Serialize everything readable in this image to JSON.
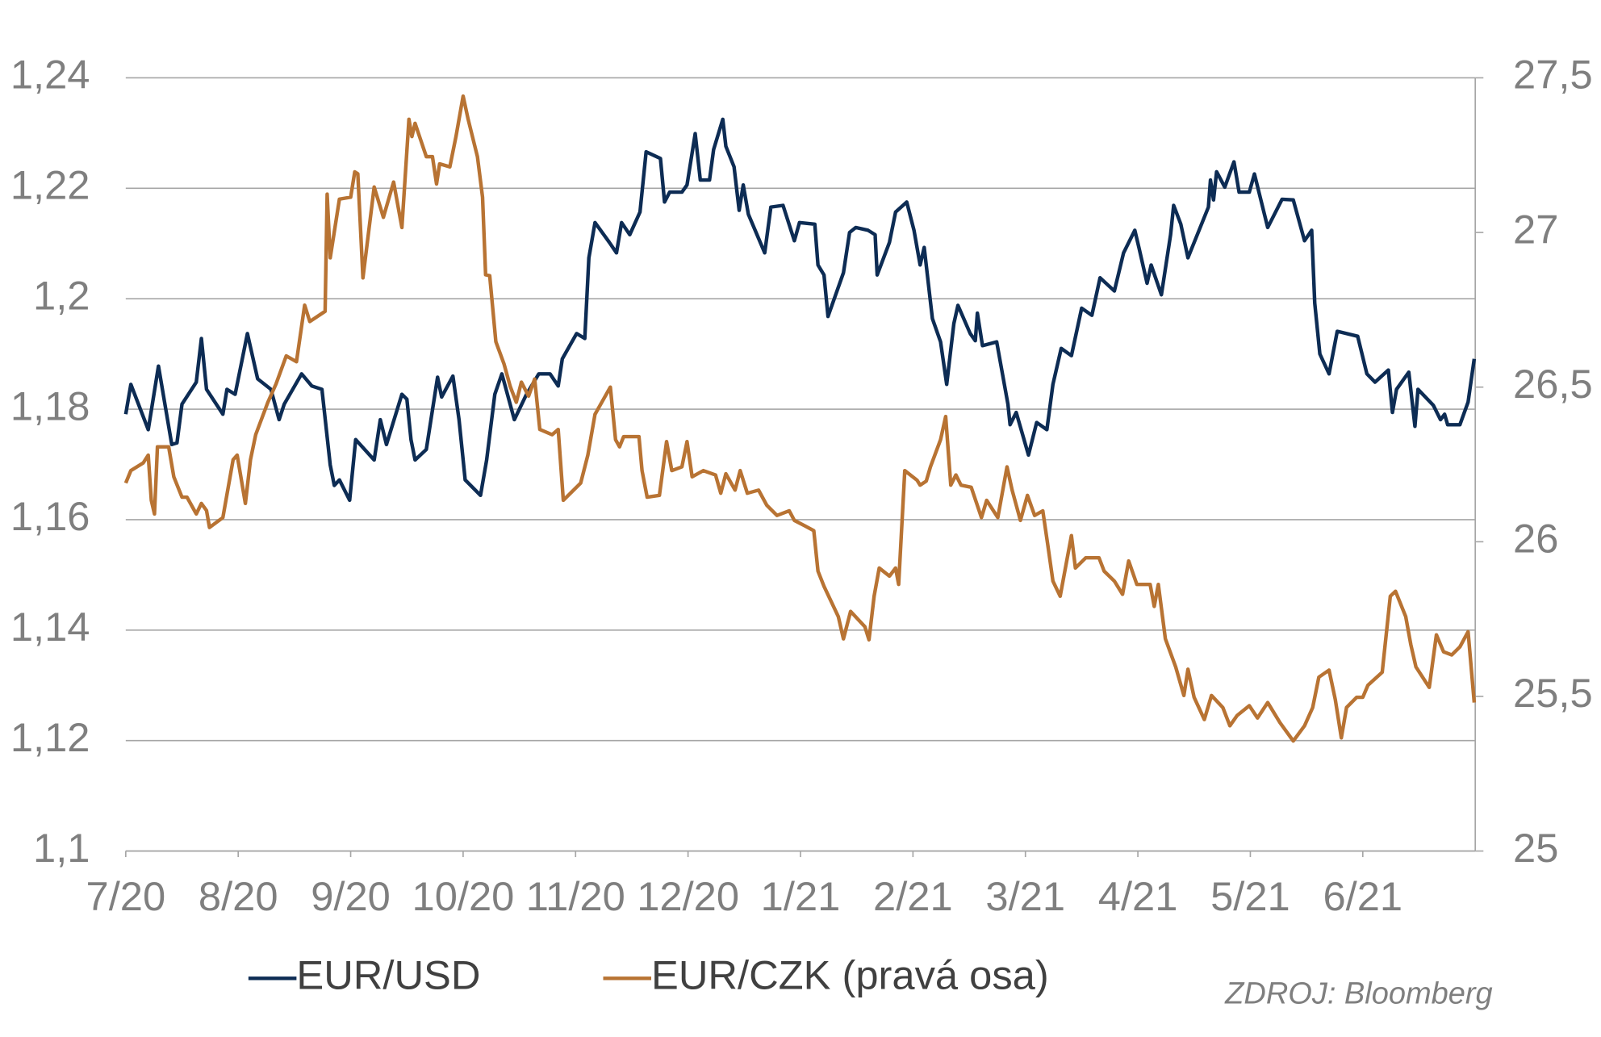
{
  "chart_data": {
    "type": "line",
    "source": "ZDROJ: Bloomberg",
    "xlim": [
      0,
      12
    ],
    "xticks": [
      {
        "value": 0,
        "label": "7/20"
      },
      {
        "value": 1,
        "label": "8/20"
      },
      {
        "value": 2,
        "label": "9/20"
      },
      {
        "value": 3,
        "label": "10/20"
      },
      {
        "value": 4,
        "label": "11/20"
      },
      {
        "value": 5,
        "label": "12/20"
      },
      {
        "value": 6,
        "label": "1/21"
      },
      {
        "value": 7,
        "label": "2/21"
      },
      {
        "value": 8,
        "label": "3/21"
      },
      {
        "value": 9,
        "label": "4/21"
      },
      {
        "value": 10,
        "label": "5/21"
      },
      {
        "value": 11,
        "label": "6/21"
      }
    ],
    "ylim": [
      1.1,
      1.24
    ],
    "yticks": [
      {
        "value": 1.1,
        "label": "1,1"
      },
      {
        "value": 1.12,
        "label": "1,12"
      },
      {
        "value": 1.14,
        "label": "1,14"
      },
      {
        "value": 1.16,
        "label": "1,16"
      },
      {
        "value": 1.18,
        "label": "1,18"
      },
      {
        "value": 1.2,
        "label": "1,2"
      },
      {
        "value": 1.22,
        "label": "1,22"
      },
      {
        "value": 1.24,
        "label": "1,24"
      }
    ],
    "y2lim": [
      25,
      27.5
    ],
    "y2ticks": [
      25,
      {
        "value": 25.5,
        "label": "25,5"
      },
      26,
      {
        "value": 26.5,
        "label": "26,5"
      },
      27,
      {
        "value": 27.5,
        "label": "27,5"
      }
    ],
    "grid": true,
    "series": [
      {
        "name": "EUR/USD",
        "color": "#0d2c54",
        "x": [
          0,
          0.045,
          0.2,
          0.291,
          0.409,
          0.455,
          0.5,
          0.627,
          0.673,
          0.718,
          0.864,
          0.9,
          0.973,
          1.082,
          1.173,
          1.291,
          1.364,
          1.409,
          1.564,
          1.655,
          1.745,
          1.818,
          1.855,
          1.9,
          1.991,
          2.045,
          2.209,
          2.264,
          2.318,
          2.455,
          2.5,
          2.536,
          2.573,
          2.673,
          2.773,
          2.809,
          2.909,
          2.964,
          3.018,
          3.155,
          3.209,
          3.282,
          3.345,
          3.455,
          3.564,
          3.673,
          3.773,
          3.845,
          3.882,
          4.009,
          4.082,
          4.118,
          4.173,
          4.3,
          4.364,
          4.409,
          4.482,
          4.573,
          4.627,
          4.755,
          4.791,
          4.836,
          4.945,
          4.991,
          5.064,
          5.109,
          5.191,
          5.227,
          5.309,
          5.336,
          5.409,
          5.455,
          5.491,
          5.536,
          5.682,
          5.736,
          5.845,
          5.945,
          5.991,
          6.127,
          6.155,
          6.209,
          6.245,
          6.382,
          6.436,
          6.491,
          6.6,
          6.664,
          6.682,
          6.791,
          6.845,
          6.945,
          7.009,
          7.064,
          7.1,
          7.173,
          7.245,
          7.3,
          7.364,
          7.4,
          7.509,
          7.555,
          7.573,
          7.618,
          7.745,
          7.845,
          7.864,
          7.918,
          8.027,
          8.1,
          8.191,
          8.245,
          8.318,
          8.409,
          8.5,
          8.591,
          8.664,
          8.791,
          8.873,
          8.973,
          9.009,
          9.082,
          9.118,
          9.209,
          9.291,
          9.318,
          9.382,
          9.445,
          9.627,
          9.645,
          9.673,
          9.7,
          9.773,
          9.855,
          9.9,
          9.991,
          10.036,
          10.155,
          10.282,
          10.382,
          10.482,
          10.545,
          10.573,
          10.618,
          10.7,
          10.773,
          10.955,
          11.036,
          11.109,
          11.227,
          11.264,
          11.3,
          11.409,
          11.464,
          11.491,
          11.627,
          11.691,
          11.727,
          11.755,
          11.864,
          11.936,
          11.991
        ],
        "values": [
          1.1791,
          1.1845,
          1.1763,
          1.1878,
          1.1736,
          1.1739,
          1.1809,
          1.1849,
          1.1928,
          1.1836,
          1.1791,
          1.1836,
          1.1827,
          1.1937,
          1.1855,
          1.1836,
          1.1781,
          1.1809,
          1.1864,
          1.1842,
          1.1836,
          1.1699,
          1.1662,
          1.1672,
          1.1635,
          1.1745,
          1.1708,
          1.1781,
          1.1736,
          1.1827,
          1.1818,
          1.1745,
          1.1708,
          1.1727,
          1.1858,
          1.1822,
          1.186,
          1.1781,
          1.1672,
          1.1644,
          1.1708,
          1.1827,
          1.1864,
          1.1781,
          1.1827,
          1.1864,
          1.1864,
          1.1842,
          1.1891,
          1.1937,
          1.1928,
          1.2074,
          1.2138,
          1.2102,
          1.2083,
          1.2138,
          1.2116,
          1.2157,
          1.2266,
          1.2254,
          1.2175,
          1.2193,
          1.2193,
          1.2206,
          1.2299,
          1.2215,
          1.2215,
          1.227,
          1.2325,
          1.2276,
          1.2239,
          1.216,
          1.2206,
          1.2153,
          1.2083,
          1.2166,
          1.2169,
          1.2105,
          1.2138,
          1.2135,
          1.2061,
          1.2043,
          1.1968,
          1.2047,
          1.212,
          1.2129,
          1.2124,
          1.2116,
          1.2043,
          1.2102,
          1.2157,
          1.2175,
          1.2124,
          1.2061,
          1.2093,
          1.1964,
          1.1922,
          1.1845,
          1.1955,
          1.1988,
          1.1937,
          1.1924,
          1.1974,
          1.1915,
          1.1922,
          1.1809,
          1.1772,
          1.1794,
          1.1717,
          1.1776,
          1.1763,
          1.1845,
          1.191,
          1.1897,
          1.1983,
          1.197,
          1.2038,
          1.2014,
          1.2083,
          1.2124,
          1.2093,
          1.2028,
          1.2061,
          1.2007,
          1.2116,
          1.2169,
          1.2135,
          1.2074,
          1.2166,
          1.2215,
          1.2179,
          1.223,
          1.2202,
          1.2248,
          1.2193,
          1.2193,
          1.2226,
          1.2129,
          1.218,
          1.2179,
          1.2105,
          1.2124,
          1.1992,
          1.19,
          1.1864,
          1.1941,
          1.1932,
          1.1864,
          1.1849,
          1.1871,
          1.1794,
          1.1836,
          1.1867,
          1.1769,
          1.1836,
          1.1807,
          1.1781,
          1.1791,
          1.1772,
          1.1772,
          1.1813,
          1.1891
        ]
      },
      {
        "name": "EUR/CZK (pravá osa)",
        "color": "#b87333",
        "axis": "y2",
        "x": [
          0,
          0.045,
          0.155,
          0.2,
          0.227,
          0.255,
          0.282,
          0.382,
          0.427,
          0.5,
          0.545,
          0.627,
          0.673,
          0.718,
          0.745,
          0.864,
          0.955,
          0.991,
          1.064,
          1.109,
          1.155,
          1.264,
          1.336,
          1.427,
          1.518,
          1.591,
          1.636,
          1.773,
          1.791,
          1.818,
          1.9,
          2,
          2.036,
          2.064,
          2.109,
          2.209,
          2.291,
          2.382,
          2.455,
          2.518,
          2.545,
          2.573,
          2.673,
          2.727,
          2.764,
          2.791,
          2.882,
          2.936,
          3,
          3.045,
          3.127,
          3.173,
          3.2,
          3.236,
          3.291,
          3.364,
          3.418,
          3.473,
          3.518,
          3.582,
          3.636,
          3.682,
          3.791,
          3.845,
          3.891,
          4.045,
          4.109,
          4.173,
          4.309,
          4.355,
          4.391,
          4.427,
          4.564,
          4.591,
          4.636,
          4.745,
          4.809,
          4.855,
          4.945,
          4.991,
          5.036,
          5.136,
          5.245,
          5.291,
          5.336,
          5.418,
          5.464,
          5.527,
          5.627,
          5.7,
          5.791,
          5.9,
          5.945,
          6.036,
          6.118,
          6.155,
          6.209,
          6.336,
          6.382,
          6.445,
          6.573,
          6.609,
          6.655,
          6.7,
          6.791,
          6.845,
          6.873,
          6.927,
          7.036,
          7.064,
          7.118,
          7.155,
          7.245,
          7.291,
          7.336,
          7.382,
          7.427,
          7.518,
          7.609,
          7.655,
          7.755,
          7.836,
          7.882,
          7.955,
          8.018,
          8.082,
          8.155,
          8.2,
          8.245,
          8.309,
          8.409,
          8.445,
          8.536,
          8.655,
          8.7,
          8.791,
          8.864,
          8.918,
          8.991,
          9.109,
          9.145,
          9.182,
          9.245,
          9.336,
          9.409,
          9.445,
          9.5,
          9.591,
          9.655,
          9.755,
          9.818,
          9.882,
          9.991,
          10.064,
          10.155,
          10.264,
          10.382,
          10.482,
          10.555,
          10.609,
          10.7,
          10.755,
          10.809,
          10.855,
          10.945,
          11,
          11.045,
          11.173,
          11.245,
          11.291,
          11.382,
          11.427,
          11.473,
          11.591,
          11.655,
          11.718,
          11.791,
          11.864,
          11.936,
          11.991
        ],
        "values": [
          26.19,
          26.23,
          26.255,
          26.28,
          26.134,
          26.09,
          26.307,
          26.307,
          26.21,
          26.144,
          26.144,
          26.09,
          26.124,
          26.101,
          26.046,
          26.078,
          26.265,
          26.28,
          26.124,
          26.265,
          26.346,
          26.451,
          26.51,
          26.601,
          26.582,
          26.765,
          26.712,
          26.745,
          27.124,
          26.918,
          27.108,
          27.114,
          27.196,
          27.19,
          26.853,
          27.147,
          27.049,
          27.163,
          27.016,
          27.366,
          27.31,
          27.353,
          27.245,
          27.245,
          27.157,
          27.222,
          27.212,
          27.31,
          27.441,
          27.366,
          27.245,
          27.114,
          26.863,
          26.86,
          26.647,
          26.575,
          26.503,
          26.451,
          26.516,
          26.471,
          26.526,
          26.363,
          26.346,
          26.363,
          26.134,
          26.19,
          26.28,
          26.412,
          26.5,
          26.33,
          26.307,
          26.34,
          26.34,
          26.23,
          26.144,
          26.15,
          26.324,
          26.23,
          26.242,
          26.324,
          26.21,
          26.23,
          26.216,
          26.157,
          26.22,
          26.167,
          26.23,
          26.157,
          26.167,
          26.118,
          26.085,
          26.1,
          26.069,
          26.052,
          26.036,
          25.905,
          25.856,
          25.758,
          25.686,
          25.775,
          25.725,
          25.683,
          25.824,
          25.915,
          25.889,
          25.915,
          25.862,
          26.23,
          26.199,
          26.183,
          26.196,
          26.242,
          26.33,
          26.405,
          26.183,
          26.216,
          26.183,
          26.176,
          26.078,
          26.134,
          26.078,
          26.242,
          26.167,
          26.069,
          26.15,
          26.085,
          26.1,
          25.987,
          25.873,
          25.824,
          26.02,
          25.915,
          25.948,
          25.948,
          25.905,
          25.873,
          25.83,
          25.938,
          25.862,
          25.862,
          25.791,
          25.862,
          25.686,
          25.595,
          25.503,
          25.588,
          25.497,
          25.425,
          25.503,
          25.464,
          25.405,
          25.438,
          25.47,
          25.43,
          25.48,
          25.415,
          25.356,
          25.405,
          25.464,
          25.562,
          25.585,
          25.49,
          25.366,
          25.464,
          25.497,
          25.497,
          25.536,
          25.578,
          25.824,
          25.84,
          25.758,
          25.667,
          25.595,
          25.529,
          25.699,
          25.644,
          25.634,
          25.66,
          25.709,
          25.48
        ]
      }
    ]
  }
}
